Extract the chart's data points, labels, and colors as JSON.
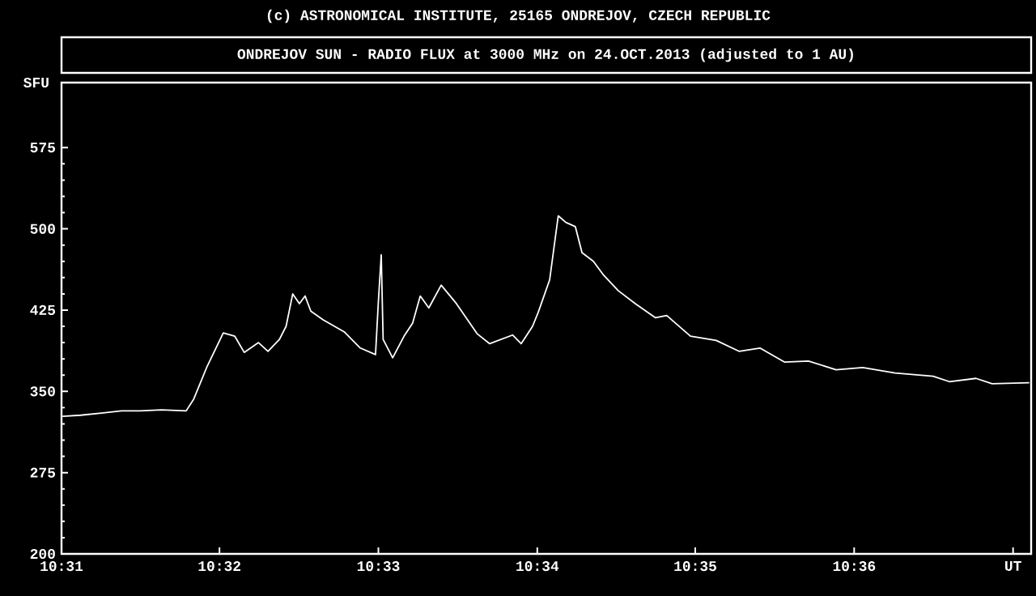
{
  "chart_data": {
    "type": "line",
    "title": "ONDREJOV SUN - RADIO FLUX at 3000 MHz on 24.OCT.2013 (adjusted to 1 AU)",
    "ylabel": "SFU",
    "annotations": [
      "(c) ASTRONOMICAL INSTITUTE, 25165 ONDREJOV, CZECH REPUBLIC"
    ],
    "x": [
      10.5168,
      10.5187,
      10.5209,
      10.523,
      10.525,
      10.5272,
      10.5298,
      10.5306,
      10.532,
      10.5337,
      10.5349,
      10.5359,
      10.5374,
      10.5384,
      10.5396,
      10.5403,
      10.541,
      10.5417,
      10.5423,
      10.5429,
      10.5442,
      10.5464,
      10.5481,
      10.5497,
      10.55,
      10.5503,
      10.5505,
      10.5515,
      10.5527,
      10.5536,
      10.5544,
      10.5553,
      10.5566,
      10.5582,
      10.5604,
      10.5617,
      10.5641,
      10.565,
      10.5662,
      10.5668,
      10.568,
      10.5689,
      10.5697,
      10.5707,
      10.5714,
      10.5726,
      10.5736,
      10.5752,
      10.577,
      10.5791,
      10.5803,
      10.5828,
      10.5855,
      10.5879,
      10.5901,
      10.5927,
      10.5952,
      10.5981,
      10.6009,
      10.6043,
      10.6083,
      10.61,
      10.6128,
      10.6145,
      10.6184
    ],
    "series": [
      {
        "color": "#ffffff",
        "values": [
          327,
          328,
          330,
          332,
          332,
          333,
          332,
          343,
          373,
          404,
          401,
          386,
          395,
          387,
          398,
          410,
          440,
          431,
          438,
          424,
          416,
          405,
          390,
          384,
          433,
          476,
          398,
          381,
          401,
          413,
          438,
          427,
          448,
          431,
          403,
          394,
          402,
          394,
          410,
          423,
          453,
          512,
          506,
          502,
          478,
          470,
          458,
          443,
          431,
          418,
          420,
          401,
          397,
          387,
          390,
          377,
          378,
          370,
          372,
          367,
          364,
          359,
          362,
          357,
          358
        ]
      }
    ],
    "xlim": [
      10.5167,
      10.6186
    ],
    "ylim": [
      200,
      635
    ],
    "xticks": [
      {
        "value": 10.5167,
        "label": "10:31"
      },
      {
        "value": 10.5333,
        "label": "10:32"
      },
      {
        "value": 10.55,
        "label": "10:33"
      },
      {
        "value": 10.5667,
        "label": "10:34"
      },
      {
        "value": 10.5833,
        "label": "10:35"
      },
      {
        "value": 10.6,
        "label": "10:36"
      },
      {
        "value": 10.6167,
        "label": "UT"
      }
    ],
    "yticks": [
      200,
      275,
      350,
      425,
      500,
      575
    ],
    "grid": false,
    "marker": "none",
    "line_style": "solid"
  }
}
